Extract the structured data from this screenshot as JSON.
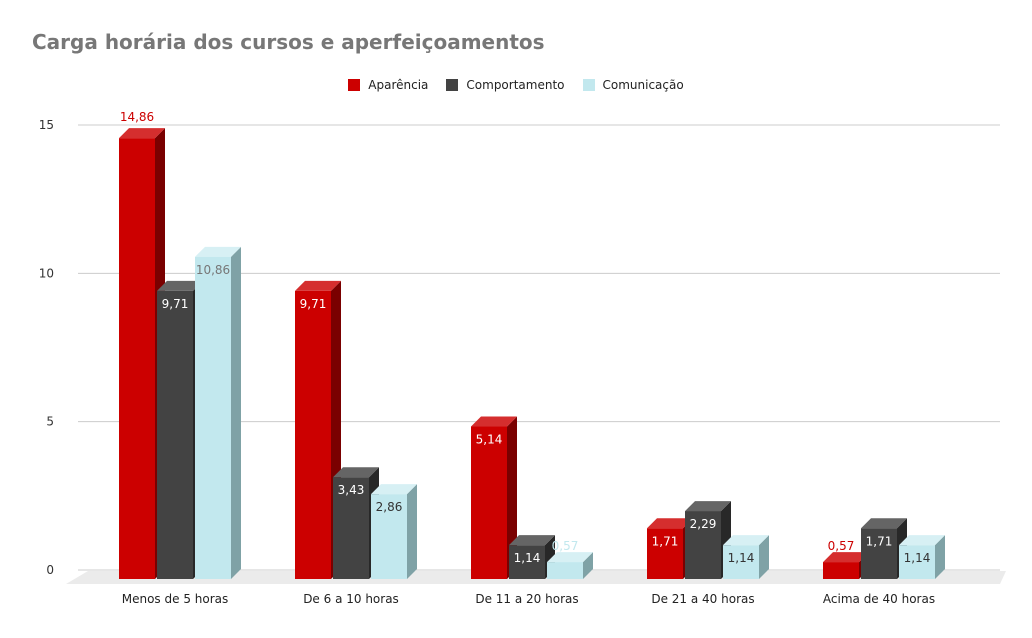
{
  "chart_data": {
    "type": "bar",
    "title": "Carga horária dos cursos e aperfeiçoamentos",
    "categories": [
      "Menos de 5 horas",
      "De 6 a 10 horas",
      "De 11 a 20 horas",
      "De 21 a 40 horas",
      "Acima de 40 horas"
    ],
    "series": [
      {
        "name": "Aparência",
        "color": "#cc0000",
        "values": [
          14.86,
          9.71,
          5.14,
          1.71,
          0.57
        ],
        "labels": [
          "14,86",
          "9,71",
          "5,14",
          "1,71",
          "0,57"
        ]
      },
      {
        "name": "Comportamento",
        "color": "#434343",
        "values": [
          9.71,
          3.43,
          1.14,
          2.29,
          1.71
        ],
        "labels": [
          "9,71",
          "3,43",
          "1,14",
          "2,29",
          "1,71"
        ]
      },
      {
        "name": "Comunicação",
        "color": "#c2e8ee",
        "values": [
          10.86,
          2.86,
          0.57,
          1.14,
          1.14
        ],
        "labels": [
          "10,86",
          "2,86",
          "0,57",
          "1,14",
          "1,14"
        ]
      }
    ],
    "ylim": [
      0,
      15
    ],
    "yticks": [
      0,
      5,
      10,
      15
    ],
    "ytick_labels": [
      "0",
      "5",
      "10",
      "15"
    ],
    "xlabel": "",
    "ylabel": "",
    "legend_position": "top-center",
    "grid": true
  }
}
